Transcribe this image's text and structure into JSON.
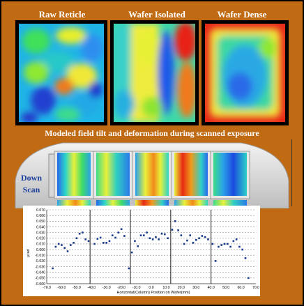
{
  "maps": [
    {
      "title": "Raw Reticle"
    },
    {
      "title": "Wafer Isolated"
    },
    {
      "title": "Wafer Dense"
    }
  ],
  "caption": "Modeled field tilt and deformation during scanned exposure",
  "scan_label": {
    "line1": "Down",
    "line2": "Scan"
  },
  "colors": {
    "background": "#c06a14",
    "text_light": "#ffffff",
    "scan_label": "#1c3f9a",
    "plot_points": "#1a3a8a"
  },
  "chart_data": {
    "type": "scatter",
    "xlabel": "Horizontal(Column) Position on Wafer(mm)",
    "ylabel": "µrad",
    "xlim": [
      -70,
      70
    ],
    "ylim": [
      -0.06,
      0.07
    ],
    "x_ticks": [
      "-70.0",
      "-60.0",
      "-50.0",
      "-40.0",
      "-30.0",
      "-20.0",
      "-10.0",
      "0.0",
      "10.0",
      "20.0",
      "30.0",
      "40.0",
      "50.0",
      "60.0",
      "70.0"
    ],
    "y_ticks": [
      "0.070",
      "0.060",
      "0.050",
      "0.040",
      "0.030",
      "0.020",
      "0.010",
      "0.000",
      "-0.010",
      "-0.020",
      "-0.030",
      "-0.040",
      "-0.050",
      "-0.060"
    ],
    "grid": "horizontal dashed",
    "field_boundaries_x": [
      -41,
      -14,
      13,
      40
    ],
    "series": [
      {
        "x": [
          -66,
          -64,
          -62,
          -60,
          -58,
          -56,
          -54,
          -52,
          -50,
          -48,
          -46,
          -44,
          -42,
          -38,
          -36,
          -34,
          -32,
          -30,
          -28,
          -26,
          -24,
          -22,
          -20,
          -18,
          -15,
          -13,
          -11,
          -9,
          -7,
          -5,
          -3,
          -1,
          1,
          3,
          5,
          7,
          9,
          11,
          14,
          16,
          18,
          20,
          22,
          24,
          26,
          28,
          30,
          32,
          34,
          36,
          38,
          41,
          43,
          45,
          47,
          49,
          51,
          53,
          55,
          57,
          59,
          61,
          63,
          65
        ],
        "y": [
          -0.033,
          0.005,
          0.01,
          0.008,
          0.003,
          -0.003,
          0.008,
          0.012,
          0.02,
          0.028,
          0.03,
          0.018,
          0.015,
          0.01,
          0.019,
          0.021,
          0.012,
          0.012,
          0.015,
          0.025,
          0.021,
          0.03,
          0.036,
          0.024,
          -0.033,
          -0.005,
          0.015,
          0.006,
          0.025,
          0.025,
          0.03,
          0.02,
          0.018,
          0.022,
          0.018,
          0.028,
          0.027,
          0.02,
          0.035,
          0.05,
          0.034,
          0.025,
          0.01,
          0.016,
          0.025,
          0.012,
          0.017,
          0.02,
          0.024,
          0.022,
          0.018,
          0.01,
          -0.02,
          0.005,
          0.008,
          0.01,
          0.01,
          0.005,
          0.015,
          0.018,
          0.005,
          0.0,
          -0.015,
          -0.05
        ]
      }
    ]
  }
}
